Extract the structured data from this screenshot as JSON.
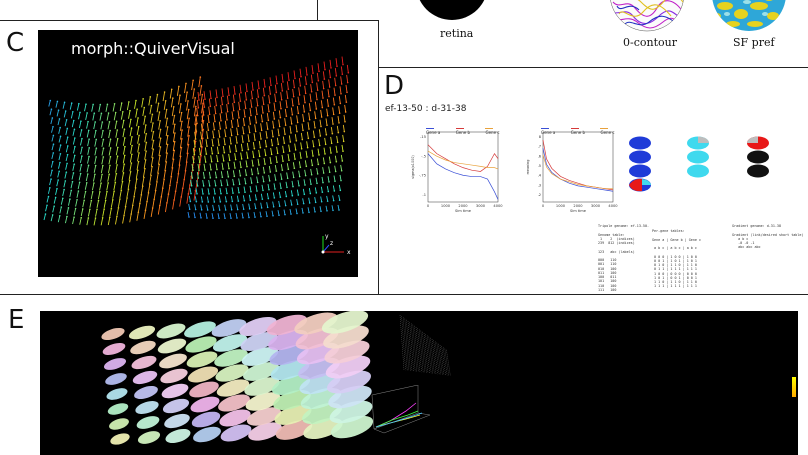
{
  "panel_letters": {
    "c": "C",
    "d": "D",
    "e": "E"
  },
  "top_right": {
    "captions": {
      "retina": "retina",
      "contour": "0-contour",
      "sfpref": "SF pref"
    }
  },
  "panel_c": {
    "title": "morph::QuiverVisual",
    "axes": {
      "x": "x",
      "y": "y",
      "z": "z"
    }
  },
  "panel_d": {
    "heading": "ef-13-50 : d-31-38",
    "chart_data": [
      {
        "type": "line",
        "legend": [
          "Gene a",
          "Gene b",
          "Gene c"
        ],
        "xlabel": "Sim time",
        "ylabel": "sigma(x1000)",
        "xticks": [
          "0",
          "1000",
          "2000",
          "3000",
          "4000"
        ],
        "yticks": [
          "-15",
          "-.5",
          "-.75",
          "-1"
        ],
        "series": [
          {
            "name": "Gene a",
            "color": "#3a4fd6",
            "x": [
              0,
              500,
              1000,
              1500,
              2000,
              2500,
              3000,
              3400,
              3800,
              4000
            ],
            "y": [
              -0.62,
              -0.7,
              -0.74,
              -0.77,
              -0.79,
              -0.8,
              -0.8,
              -0.82,
              -0.92,
              -0.98
            ]
          },
          {
            "name": "Gene b",
            "color": "#d63a3a",
            "x": [
              0,
              500,
              1000,
              1500,
              2000,
              2500,
              3000,
              3400,
              3800,
              4000
            ],
            "y": [
              -0.55,
              -0.62,
              -0.66,
              -0.7,
              -0.73,
              -0.75,
              -0.76,
              -0.72,
              -0.62,
              -0.66
            ]
          },
          {
            "name": "Gene c",
            "color": "#e8a23c",
            "x": [
              0,
              500,
              1000,
              1500,
              2000,
              2500,
              3000,
              3400,
              3800,
              4000
            ],
            "y": [
              -0.6,
              -0.64,
              -0.67,
              -0.69,
              -0.7,
              -0.71,
              -0.72,
              -0.73,
              -0.73,
              -0.74
            ]
          }
        ]
      },
      {
        "type": "line",
        "legend": [
          "Gene a",
          "Gene b",
          "Gene c"
        ],
        "xlabel": "Sim time",
        "ylabel": "meaning",
        "xticks": [
          "0",
          "1000",
          "2000",
          "3000",
          "4000"
        ],
        "yticks": [
          "8",
          ".7",
          ".6",
          ".5",
          ".4",
          ".3",
          ".2"
        ],
        "series": [
          {
            "name": "Gene a",
            "color": "#3a4fd6",
            "x": [
              0,
              200,
              500,
              1000,
              1500,
              2000,
              2500,
              3000,
              3500,
              4000
            ],
            "y": [
              0.6,
              0.48,
              0.42,
              0.37,
              0.34,
              0.32,
              0.31,
              0.3,
              0.29,
              0.28
            ]
          },
          {
            "name": "Gene b",
            "color": "#d63a3a",
            "x": [
              0,
              200,
              500,
              1000,
              1500,
              2000,
              2500,
              3000,
              3500,
              4000
            ],
            "y": [
              0.66,
              0.52,
              0.45,
              0.39,
              0.36,
              0.34,
              0.32,
              0.31,
              0.3,
              0.29
            ]
          },
          {
            "name": "Gene c",
            "color": "#e8a23c",
            "x": [
              0,
              200,
              500,
              1000,
              1500,
              2000,
              2500,
              3000,
              3500,
              4000
            ],
            "y": [
              0.55,
              0.46,
              0.41,
              0.37,
              0.35,
              0.33,
              0.32,
              0.31,
              0.3,
              0.3
            ]
          }
        ]
      }
    ],
    "text_blocks": {
      "block1": "Tripole genome: ef-13-50.\n\nGenome table:\n 1    2  (indices)\n239  812 (indices)\n\n123   abc (labels)\n\n000   110\n001   110\n010   100\n011   100\n100   011\n101   100\n110   100\n111   100",
      "block2": "Per-gene tables:\n\nGene a | Gene b | Gene c\n\n a b c | a b c | a b c\n\n 0 0 0 | 1 0 0 | 1 0 0\n 0 0 1 | 1 0 1 | 1 0 1\n 0 1 0 | 1 1 0 | 1 1 0\n 0 1 1 | 1 1 1 | 1 1 1\n 1 0 0 | 0 0 0 | 0 0 0\n 1 0 1 | 0 0 1 | 0 0 1\n 1 1 0 | 1 1 0 | 1 1 0\n 1 1 1 | 1 1 1 | 1 1 1",
      "block3": "Gradient genome: d-31-38\n\nGradient (link/desired short table)\n   a b c\n   -0 -0 -1\n   abc abc abc"
    }
  },
  "colors": {
    "black": "#000000",
    "divider": "#222222",
    "blob_blue": "#1f3bd8",
    "blob_cyan": "#3fd9ee",
    "blob_red": "#e81818"
  }
}
